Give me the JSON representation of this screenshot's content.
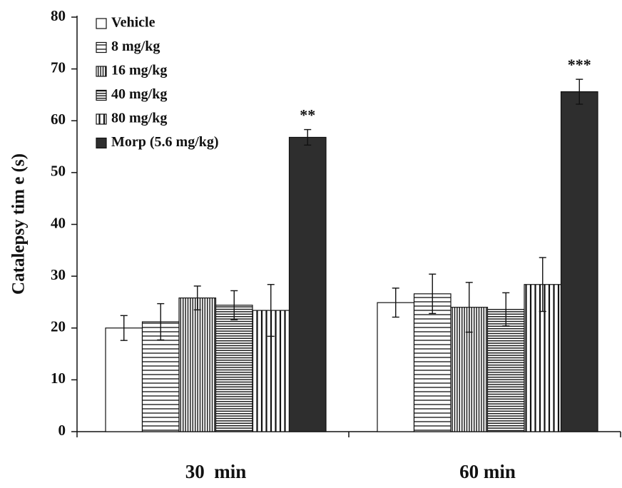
{
  "chart_data": {
    "type": "bar",
    "y_label": "Catalepsy tim e (s)",
    "categories": [
      "30  min",
      "60 min"
    ],
    "ylim": [
      0,
      80
    ],
    "yticks": [
      0,
      10,
      20,
      30,
      40,
      50,
      60,
      70,
      80
    ],
    "legend": "top-left",
    "series": [
      {
        "name": "Vehicle",
        "color": "#ffffff",
        "pattern": "none",
        "values": [
          20.0,
          24.9
        ],
        "errors": [
          2.4,
          2.8
        ]
      },
      {
        "name": "8 mg/kg",
        "color": "#ffffff",
        "pattern": "horizontal",
        "values": [
          21.2,
          26.6
        ],
        "errors": [
          3.5,
          3.8
        ]
      },
      {
        "name": "16 mg/kg",
        "color": "#ffffff",
        "pattern": "vertical-dense",
        "values": [
          25.8,
          24.0
        ],
        "errors": [
          2.3,
          4.8
        ]
      },
      {
        "name": "40 mg/kg",
        "color": "#ffffff",
        "pattern": "horizontal-dense",
        "values": [
          24.4,
          23.6
        ],
        "errors": [
          2.8,
          3.2
        ]
      },
      {
        "name": "80 mg/kg",
        "color": "#ffffff",
        "pattern": "vertical",
        "values": [
          23.4,
          28.4
        ],
        "errors": [
          5.0,
          5.2
        ]
      },
      {
        "name": "Morp (5.6 mg/kg)",
        "color": "#2e2e2e",
        "pattern": "none",
        "values": [
          56.8,
          65.6
        ],
        "errors": [
          1.5,
          2.4
        ],
        "annotations": [
          "**",
          "***"
        ]
      }
    ]
  }
}
